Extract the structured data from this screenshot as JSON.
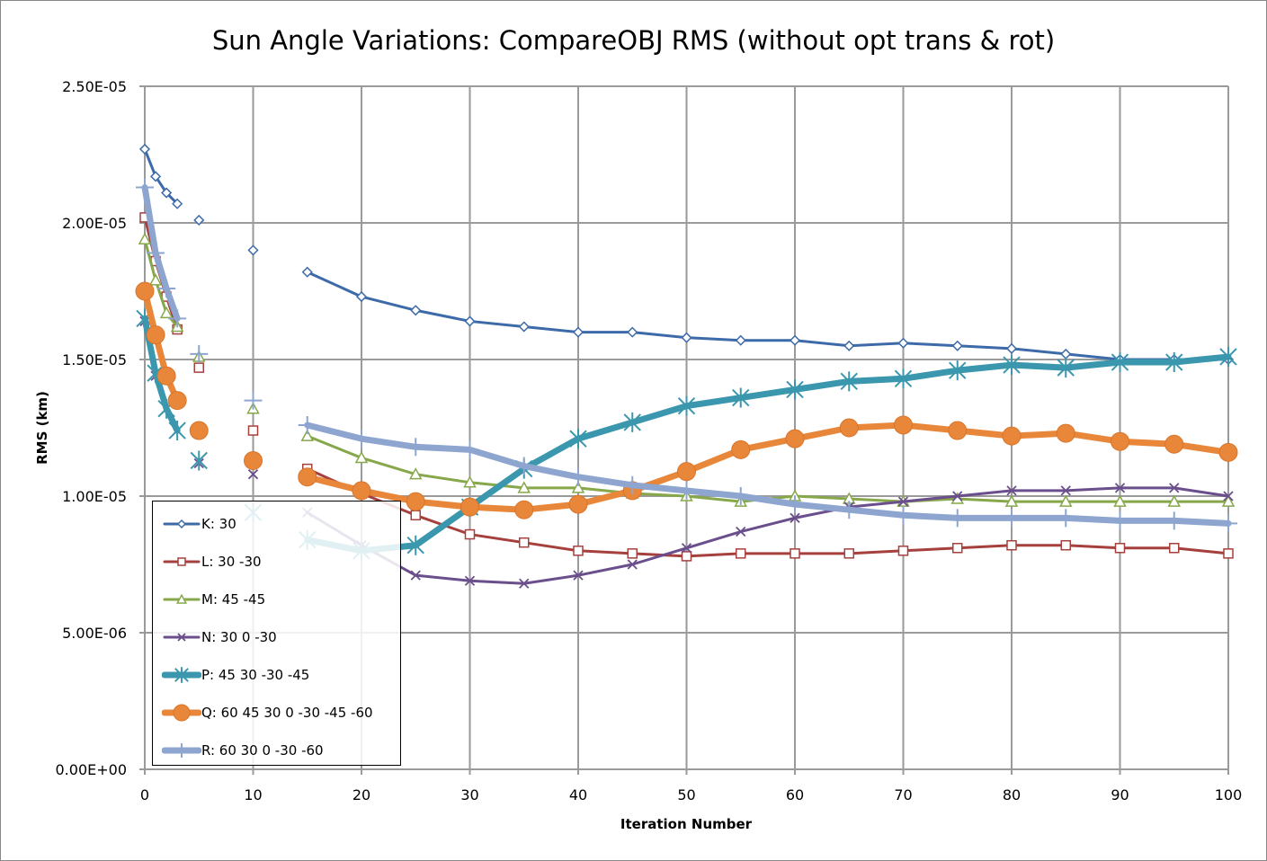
{
  "chart_data": {
    "type": "line",
    "title": "Sun Angle Variations: CompareOBJ RMS (without opt trans & rot)",
    "xlabel": "Iteration Number",
    "ylabel": "RMS (km)",
    "xlim": [
      0,
      100
    ],
    "ylim": [
      0,
      2.5e-05
    ],
    "xticks": [
      "0",
      "10",
      "20",
      "30",
      "40",
      "50",
      "60",
      "70",
      "80",
      "90",
      "100"
    ],
    "yticks": [
      "0.00E+00",
      "5.00E-06",
      "1.00E-05",
      "1.50E-05",
      "2.00E-05",
      "2.50E-05"
    ],
    "grid": true,
    "legend_position": "bottom-left",
    "x": [
      0,
      1,
      2,
      3,
      5,
      10,
      15,
      20,
      25,
      30,
      35,
      40,
      45,
      50,
      55,
      60,
      65,
      70,
      75,
      80,
      85,
      90,
      95,
      100
    ],
    "series": [
      {
        "name": "K: 30",
        "color": "#3d6aa8",
        "marker": "diamond",
        "line": "thin",
        "values": [
          2.27e-05,
          2.17e-05,
          2.11e-05,
          2.07e-05,
          2.01e-05,
          1.9e-05,
          1.82e-05,
          1.73e-05,
          1.68e-05,
          1.64e-05,
          1.62e-05,
          1.6e-05,
          1.6e-05,
          1.58e-05,
          1.57e-05,
          1.57e-05,
          1.55e-05,
          1.56e-05,
          1.55e-05,
          1.54e-05,
          1.52e-05,
          1.5e-05,
          1.5e-05,
          1.5e-05
        ]
      },
      {
        "name": "L: 30 -30",
        "color": "#a6403d",
        "marker": "square",
        "line": "thin",
        "values": [
          2.02e-05,
          1.86e-05,
          1.73e-05,
          1.61e-05,
          1.47e-05,
          1.24e-05,
          1.1e-05,
          1.01e-05,
          9.3e-06,
          8.6e-06,
          8.3e-06,
          8e-06,
          7.9e-06,
          7.8e-06,
          7.9e-06,
          7.9e-06,
          7.9e-06,
          8e-06,
          8.1e-06,
          8.2e-06,
          8.2e-06,
          8.1e-06,
          8.1e-06,
          7.9e-06
        ]
      },
      {
        "name": "M: 45 -45",
        "color": "#86a84a",
        "marker": "triangle",
        "line": "thin",
        "values": [
          1.94e-05,
          1.79e-05,
          1.67e-05,
          1.62e-05,
          1.51e-05,
          1.32e-05,
          1.22e-05,
          1.14e-05,
          1.08e-05,
          1.05e-05,
          1.03e-05,
          1.03e-05,
          1.01e-05,
          1e-05,
          9.8e-06,
          1e-05,
          9.9e-06,
          9.8e-06,
          9.9e-06,
          9.8e-06,
          9.8e-06,
          9.8e-06,
          9.8e-06,
          9.8e-06
        ]
      },
      {
        "name": "N: 30 0 -30",
        "color": "#6b4f8c",
        "marker": "x",
        "line": "thin",
        "values": [
          1.64e-05,
          1.44e-05,
          1.32e-05,
          1.24e-05,
          1.12e-05,
          1.08e-05,
          9.4e-06,
          8.2e-06,
          7.1e-06,
          6.9e-06,
          6.8e-06,
          7.1e-06,
          7.5e-06,
          8.1e-06,
          8.7e-06,
          9.2e-06,
          9.6e-06,
          9.8e-06,
          1e-05,
          1.02e-05,
          1.02e-05,
          1.03e-05,
          1.03e-05,
          1e-05
        ]
      },
      {
        "name": "P: 45 30 -30 -45",
        "color": "#3a97ad",
        "marker": "star",
        "line": "thick",
        "values": [
          1.65e-05,
          1.45e-05,
          1.32e-05,
          1.24e-05,
          1.13e-05,
          9.4e-06,
          8.4e-06,
          8e-06,
          8.2e-06,
          9.6e-06,
          1.1e-05,
          1.21e-05,
          1.27e-05,
          1.33e-05,
          1.36e-05,
          1.39e-05,
          1.42e-05,
          1.43e-05,
          1.46e-05,
          1.48e-05,
          1.47e-05,
          1.49e-05,
          1.49e-05,
          1.51e-05
        ]
      },
      {
        "name": "Q: 60 45 30 0 -30 -45 -60",
        "color": "#e8863a",
        "marker": "circle",
        "line": "thick",
        "values": [
          1.75e-05,
          1.59e-05,
          1.44e-05,
          1.35e-05,
          1.24e-05,
          1.13e-05,
          1.07e-05,
          1.02e-05,
          9.8e-06,
          9.6e-06,
          9.5e-06,
          9.7e-06,
          1.02e-05,
          1.09e-05,
          1.17e-05,
          1.21e-05,
          1.25e-05,
          1.26e-05,
          1.24e-05,
          1.22e-05,
          1.23e-05,
          1.2e-05,
          1.19e-05,
          1.16e-05
        ]
      },
      {
        "name": "R: 60 30 0 -30 -60",
        "color": "#8ea6cf",
        "marker": "plus",
        "line": "thick",
        "values": [
          2.13e-05,
          1.89e-05,
          1.76e-05,
          1.65e-05,
          1.52e-05,
          1.35e-05,
          1.26e-05,
          1.21e-05,
          1.18e-05,
          1.17e-05,
          1.11e-05,
          1.07e-05,
          1.04e-05,
          1.02e-05,
          1e-05,
          9.7e-06,
          9.5e-06,
          9.3e-06,
          9.2e-06,
          9.2e-06,
          9.2e-06,
          9.1e-06,
          9.1e-06,
          9e-06
        ]
      }
    ],
    "connected_ranges": [
      [
        0,
        3
      ],
      [
        15,
        100
      ]
    ]
  }
}
